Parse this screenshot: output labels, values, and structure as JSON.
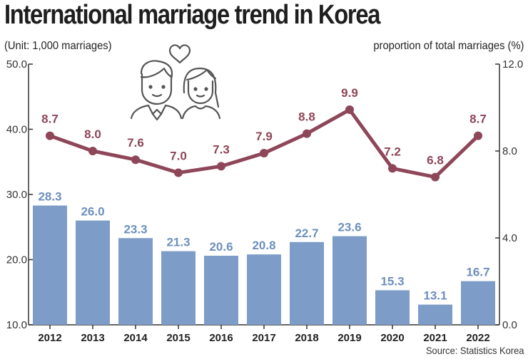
{
  "title": "International marriage trend in Korea",
  "unit_left": "(Unit: 1,000 marriages)",
  "unit_right": "proportion of total marriages (%)",
  "source": "Source: Statistics Korea",
  "icon": "couple-icon",
  "colors": {
    "bar": "#7d9dc8",
    "line": "#8e4659",
    "bar_label": "#6e8fbd",
    "axis": "#333333"
  },
  "chart_data": {
    "type": "bar+line",
    "categories": [
      "2012",
      "2013",
      "2014",
      "2015",
      "2016",
      "2017",
      "2018",
      "2019",
      "2020",
      "2021",
      "2022"
    ],
    "series": [
      {
        "type": "bar",
        "axis": "left",
        "values": [
          28.3,
          26.0,
          23.3,
          21.3,
          20.6,
          20.8,
          22.7,
          23.6,
          15.3,
          13.1,
          16.7
        ],
        "labels": [
          "28.3",
          "26.0",
          "23.3",
          "21.3",
          "20.6",
          "20.8",
          "22.7",
          "23.6",
          "15.3",
          "13.1",
          "16.7"
        ]
      },
      {
        "type": "line",
        "axis": "right",
        "values": [
          8.7,
          8.0,
          7.6,
          7.0,
          7.3,
          7.9,
          8.8,
          9.9,
          7.2,
          6.8,
          8.7
        ],
        "labels": [
          "8.7",
          "8.0",
          "7.6",
          "7.0",
          "7.3",
          "7.9",
          "8.8",
          "9.9",
          "7.2",
          "6.8",
          "8.7"
        ]
      }
    ],
    "y_left": {
      "min": 10.0,
      "max": 50.0,
      "ticks": [
        "10.0",
        "20.0",
        "30.0",
        "40.0",
        "50.0"
      ],
      "values": [
        10,
        20,
        30,
        40,
        50
      ]
    },
    "y_right": {
      "min": 0.0,
      "max": 12.0,
      "ticks": [
        "0.0",
        "4.0",
        "8.0",
        "12.0"
      ],
      "values": [
        0,
        4,
        8,
        12
      ]
    },
    "grid": false,
    "legend": "none"
  }
}
